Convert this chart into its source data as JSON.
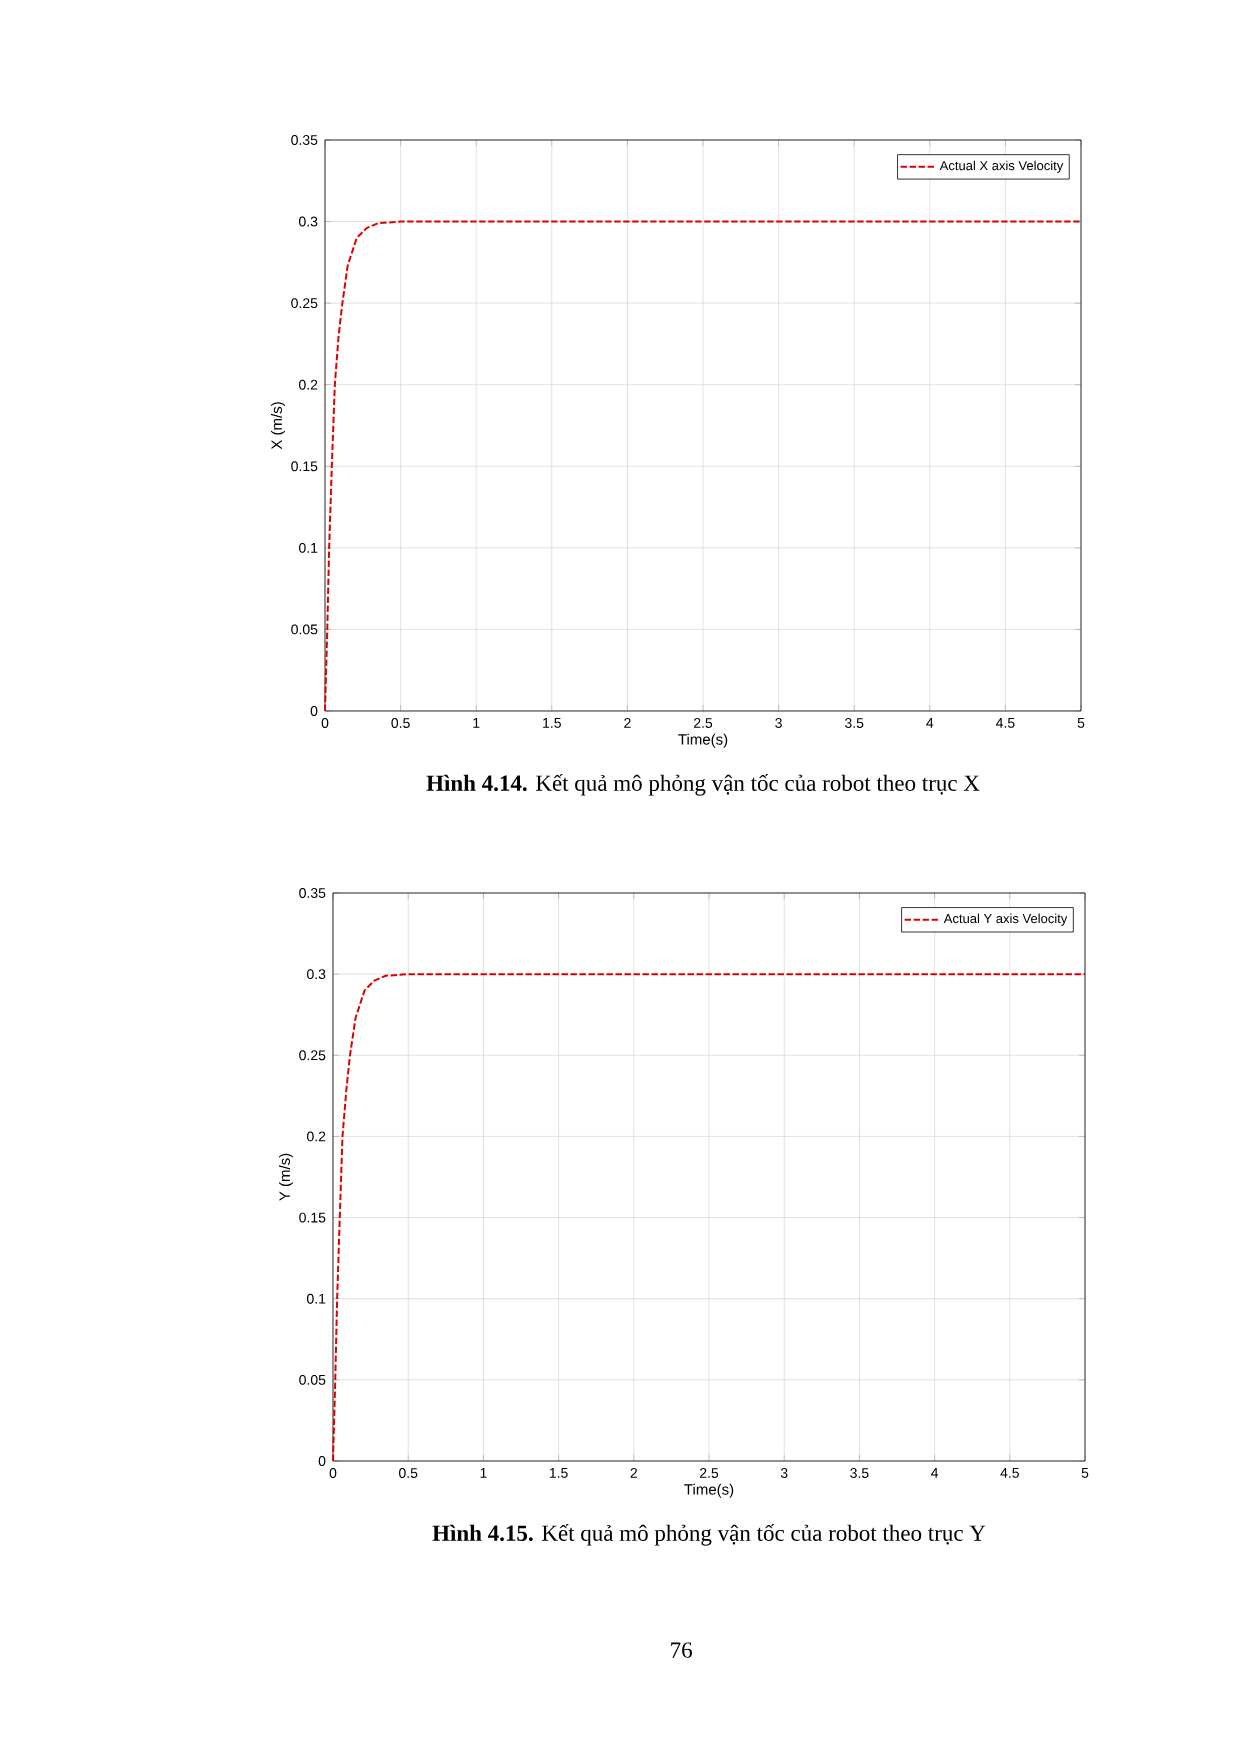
{
  "chart_data": [
    {
      "type": "line",
      "title": "**Hình 4.14.** Kết quả mô phỏng vận tốc của robot theo trục X",
      "xlabel": "Time(s)",
      "ylabel": "X (m/s)",
      "series": [
        {
          "name": "Actual X axis Velocity",
          "color": "#dd0000",
          "x": [
            0,
            0.015,
            0.0275,
            0.045,
            0.065,
            0.09,
            0.115,
            0.15,
            0.21,
            0.275,
            0.35,
            0.5,
            5
          ],
          "values": [
            0,
            0.05,
            0.1,
            0.15,
            0.2,
            0.23,
            0.25,
            0.273,
            0.29,
            0.296,
            0.299,
            0.3,
            0.3
          ]
        }
      ],
      "xlim": [
        0,
        5
      ],
      "ylim": [
        0,
        0.35
      ],
      "xticks": [
        0,
        0.5,
        1,
        1.5,
        2,
        2.5,
        3,
        3.5,
        4,
        4.5,
        5
      ],
      "yticks": [
        0,
        0.05,
        0.1,
        0.15,
        0.2,
        0.25,
        0.3,
        0.35
      ],
      "grid": true,
      "legend": "top right",
      "line_style": "dashed",
      "marker": "none"
    },
    {
      "type": "line",
      "title": "**Hình 4.15.** Kết quả mô phỏng vận tốc của robot theo trục Y",
      "xlabel": "Time(s)",
      "ylabel": "Y (m/s)",
      "series": [
        {
          "name": "Actual Y axis Velocity",
          "color": "#dd0000",
          "x": [
            0,
            0.015,
            0.0275,
            0.045,
            0.063,
            0.09,
            0.113,
            0.15,
            0.21,
            0.275,
            0.35,
            0.5,
            5
          ],
          "values": [
            0,
            0.05,
            0.1,
            0.15,
            0.2,
            0.23,
            0.25,
            0.273,
            0.29,
            0.296,
            0.299,
            0.3,
            0.3
          ]
        }
      ],
      "xlim": [
        0,
        5
      ],
      "ylim": [
        0,
        0.35
      ],
      "xticks": [
        0,
        0.5,
        1,
        1.5,
        2,
        2.5,
        3,
        3.5,
        4,
        4.5,
        5
      ],
      "yticks": [
        0,
        0.05,
        0.1,
        0.15,
        0.2,
        0.25,
        0.3,
        0.35
      ],
      "grid": true,
      "legend": "top right",
      "line_style": "dashed",
      "marker": "none",
      "annotations": [
        "76"
      ]
    }
  ]
}
